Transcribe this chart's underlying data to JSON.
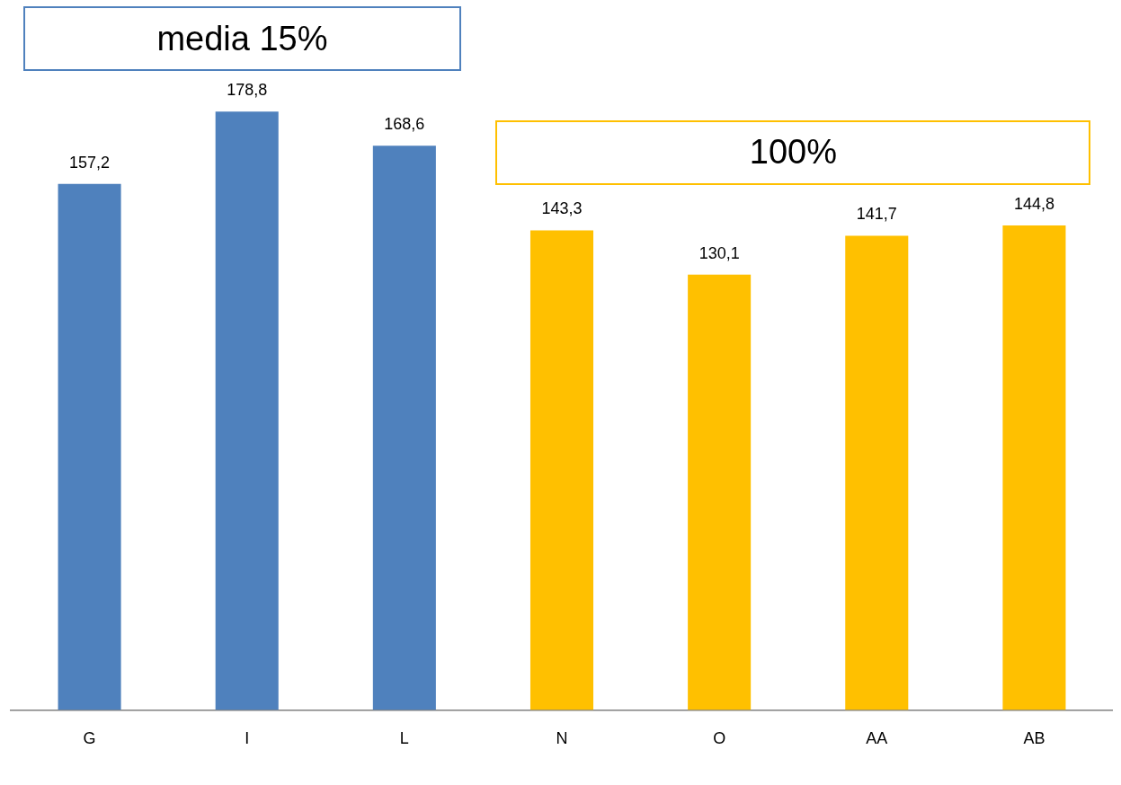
{
  "chart_data": {
    "type": "bar",
    "categories": [
      "G",
      "I",
      "L",
      "N",
      "O",
      "AA",
      "AB"
    ],
    "series": [
      {
        "name": "media 15%",
        "color": "#4f81bd",
        "values": [
          157.2,
          178.8,
          168.6,
          null,
          null,
          null,
          null
        ],
        "value_labels": [
          "157,2",
          "178,8",
          "168,6",
          null,
          null,
          null,
          null
        ]
      },
      {
        "name": "100%",
        "color": "#ffc000",
        "values": [
          null,
          null,
          null,
          143.3,
          130.1,
          141.7,
          144.8
        ],
        "value_labels": [
          null,
          null,
          null,
          "143,3",
          "130,1",
          "141,7",
          "144,8"
        ]
      }
    ],
    "ylim": [
      0,
      210
    ],
    "grid": false,
    "legend": false
  }
}
